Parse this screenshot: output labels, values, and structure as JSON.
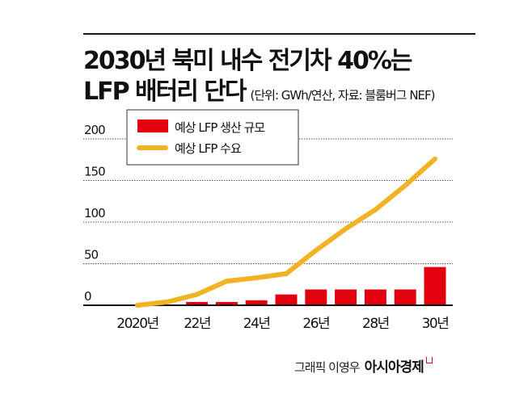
{
  "header": {
    "title_line1": "2030년 북미 내수 전기차 40%는",
    "title_line2": "LFP 배터리 단다",
    "subtitle": "(단위: GWh/연산, 자료: 블룸버그 NEF)"
  },
  "credit": {
    "byline": "그래픽 이영우",
    "brand": "아시아경제"
  },
  "colors": {
    "bar": "#e3000f",
    "line": "#f0b323",
    "axis": "#111111",
    "grid": "#555555"
  },
  "chart_data": {
    "type": "bar",
    "title": "2030년 북미 내수 전기차 40%는 LFP 배터리 단다",
    "subtitle": "(단위: GWh/연산, 자료: 블룸버그 NEF)",
    "xlabel": "",
    "ylabel": "",
    "ylim": [
      0,
      200
    ],
    "yticks": [
      0,
      50,
      100,
      150,
      200
    ],
    "ytick_labels": [
      "0",
      "50",
      "100",
      "150",
      "200"
    ],
    "grid": true,
    "legend_position": "top-left",
    "x": [
      2020,
      2021,
      2022,
      2023,
      2024,
      2025,
      2026,
      2027,
      2028,
      2029,
      2030
    ],
    "xtick_labels": [
      {
        "x": 2020,
        "label": "2020년"
      },
      {
        "x": 2022,
        "label": "22년"
      },
      {
        "x": 2024,
        "label": "24년"
      },
      {
        "x": 2026,
        "label": "26년"
      },
      {
        "x": 2028,
        "label": "28년"
      },
      {
        "x": 2030,
        "label": "30년"
      }
    ],
    "series": [
      {
        "name": "예상 LFP 생산 규모",
        "type": "bar",
        "values": [
          0,
          1,
          4,
          4,
          6,
          13,
          19,
          19,
          19,
          19,
          46
        ]
      },
      {
        "name": "예상 LFP 수요",
        "type": "line",
        "values": [
          0,
          4,
          13,
          29,
          33,
          38,
          66,
          92,
          115,
          144,
          176
        ]
      }
    ]
  }
}
